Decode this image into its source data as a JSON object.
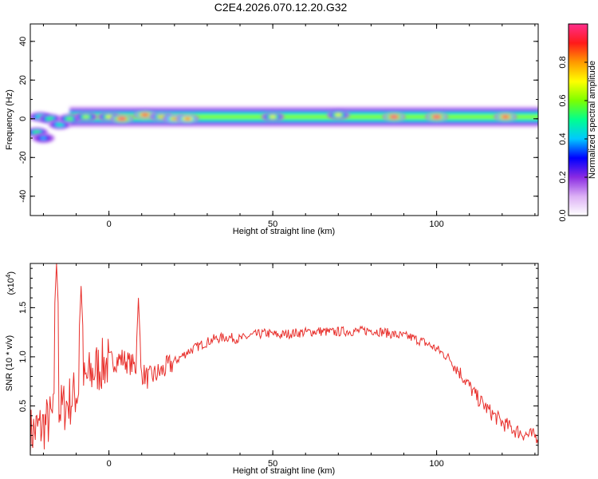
{
  "chart_data": [
    {
      "type": "heatmap",
      "title": "C2E4.2026.070.12.20.G32",
      "xlabel": "Height of straight line (km)",
      "ylabel": "Frequency (Hz)",
      "xlim": [
        -24,
        131
      ],
      "ylim": [
        -50,
        49
      ],
      "xticks": [
        "0",
        "50",
        "100"
      ],
      "yticks": [
        "-40",
        "-20",
        "0",
        "20",
        "40"
      ],
      "ridge_center_hz": 1,
      "ridge_halfwidth_hz": 4,
      "hotspots": [
        {
          "x": -22,
          "y": -7,
          "amp": 0.55
        },
        {
          "x": -20,
          "y": -10,
          "amp": 0.4
        },
        {
          "x": -21,
          "y": 1,
          "amp": 0.5
        },
        {
          "x": -18,
          "y": 0,
          "amp": 0.55
        },
        {
          "x": -15,
          "y": -3,
          "amp": 0.5
        },
        {
          "x": -12,
          "y": 0,
          "amp": 0.6
        },
        {
          "x": -7,
          "y": 1,
          "amp": 0.65
        },
        {
          "x": 0,
          "y": 1,
          "amp": 0.7
        },
        {
          "x": 4,
          "y": 0,
          "amp": 1.0
        },
        {
          "x": 11,
          "y": 2,
          "amp": 0.95
        },
        {
          "x": 16,
          "y": 1,
          "amp": 0.75
        },
        {
          "x": 20,
          "y": 0,
          "amp": 0.8
        },
        {
          "x": 24,
          "y": 0,
          "amp": 0.85
        },
        {
          "x": 50,
          "y": 1,
          "amp": 0.7
        },
        {
          "x": 70,
          "y": 2,
          "amp": 0.7
        },
        {
          "x": 87,
          "y": 1,
          "amp": 1.0
        },
        {
          "x": 100,
          "y": 1,
          "amp": 1.0
        },
        {
          "x": 121,
          "y": 1,
          "amp": 0.95
        }
      ],
      "colorbar": {
        "label": "Normalized spectral amplitude",
        "range": [
          0,
          1
        ],
        "ticks": [
          "0.0",
          "0.2",
          "0.4",
          "0.6",
          "0.8"
        ],
        "colors": [
          "#ffffff",
          "#dcb0f5",
          "#8a2be2",
          "#0000ff",
          "#00c8ff",
          "#00ff90",
          "#7cff00",
          "#ffff00",
          "#ff9a00",
          "#ff1a1a",
          "#ff2e8c"
        ]
      }
    },
    {
      "type": "line",
      "xlabel": "Height of straight line (km)",
      "ylabel": "SNR (10 * v/v)",
      "scale_note": "(x10",
      "scale_exp": "4",
      "scale_close": ")",
      "xlim": [
        -24,
        131
      ],
      "ylim": [
        0.0,
        1.95
      ],
      "xticks": [
        "0",
        "50",
        "100"
      ],
      "yticks": [
        "0.5",
        "1.0",
        "1.5"
      ],
      "series": [
        {
          "color": "#e8302c",
          "x": [
            -24,
            -20,
            -16,
            -12,
            -8,
            -4,
            0,
            4,
            8,
            12,
            16,
            20,
            24,
            28,
            32,
            36,
            40,
            44,
            48,
            52,
            56,
            60,
            64,
            68,
            72,
            76,
            80,
            84,
            88,
            92,
            96,
            100,
            104,
            108,
            112,
            116,
            120,
            124,
            128,
            131
          ],
          "y": [
            0.22,
            0.3,
            0.42,
            0.55,
            0.72,
            0.88,
            0.95,
            0.98,
            0.9,
            0.78,
            0.85,
            0.95,
            1.05,
            1.12,
            1.18,
            1.2,
            1.18,
            1.22,
            1.24,
            1.22,
            1.24,
            1.25,
            1.26,
            1.25,
            1.26,
            1.26,
            1.27,
            1.25,
            1.22,
            1.2,
            1.15,
            1.08,
            0.98,
            0.8,
            0.6,
            0.45,
            0.33,
            0.25,
            0.2,
            0.19
          ]
        }
      ],
      "spikes": [
        {
          "x": -16,
          "y": 1.95
        },
        {
          "x": -8.5,
          "y": 1.72
        },
        {
          "x": 9,
          "y": 1.6
        }
      ]
    }
  ]
}
